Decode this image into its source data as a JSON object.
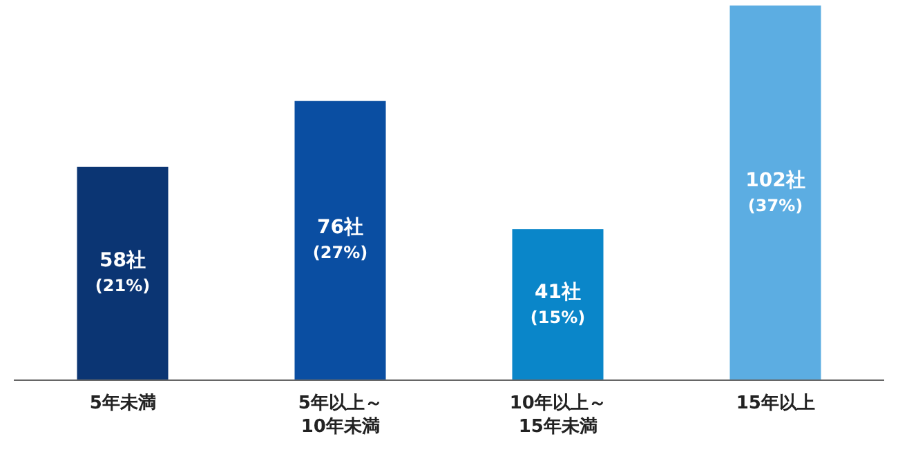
{
  "chart_data": {
    "type": "bar",
    "categories": [
      "5年未満",
      "5年以上～10年未満",
      "10年以上～15年未満",
      "15年以上"
    ],
    "values": [
      58,
      76,
      41,
      102
    ],
    "colors": [
      "#0b3573",
      "#0a4ea2",
      "#0a86c9",
      "#5cade2"
    ],
    "value_labels": [
      "58社 (21%)",
      "76社 (27%)",
      "41社 (15%)",
      "102社 (37%)"
    ]
  }
}
